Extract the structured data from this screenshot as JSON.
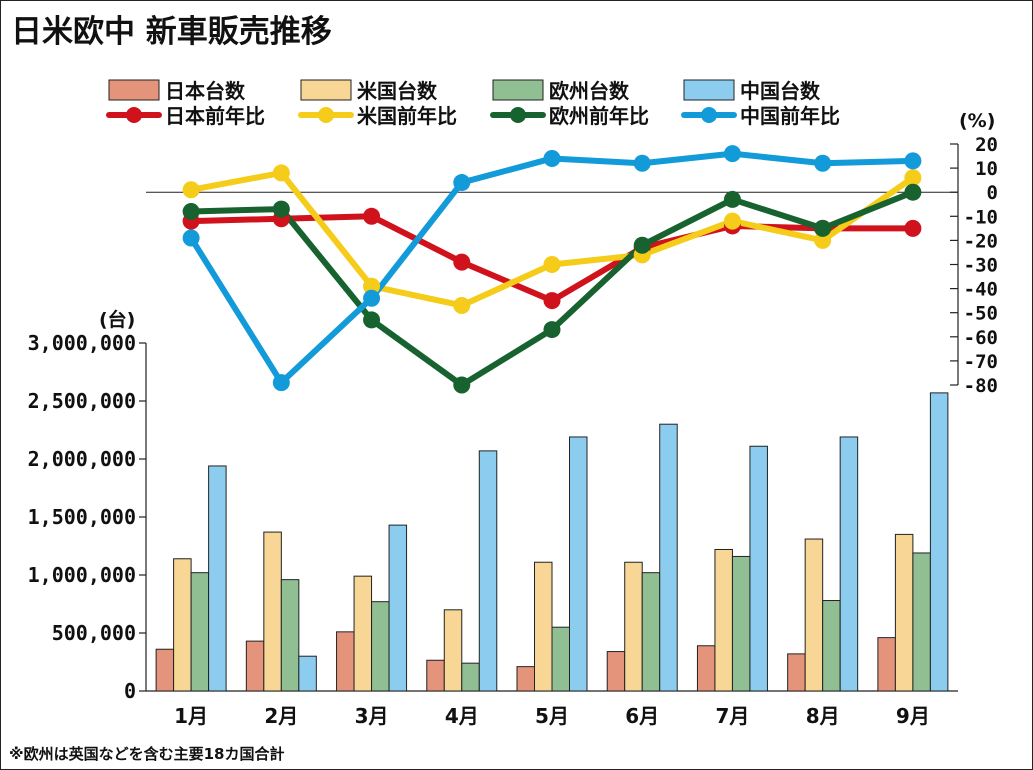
{
  "colors": {
    "jp_bar": "#e5947c",
    "us_bar": "#f8d695",
    "eu_bar": "#8fbf92",
    "cn_bar": "#8ccdef",
    "jp_line": "#d0121d",
    "us_line": "#f4cc19",
    "eu_line": "#17622e",
    "cn_line": "#139bd9"
  },
  "chart_data": {
    "type": "bar+line",
    "title": "日米欧中 新車販売推移",
    "categories": [
      "1月",
      "2月",
      "3月",
      "4月",
      "5月",
      "6月",
      "7月",
      "8月",
      "9月"
    ],
    "left_axis": {
      "unit": "(台)",
      "ylim": [
        0,
        3000000
      ],
      "ticks": [
        0,
        500000,
        1000000,
        1500000,
        2000000,
        2500000,
        3000000
      ],
      "tick_labels": [
        "0",
        "500,000",
        "1,000,000",
        "1,500,000",
        "2,000,000",
        "2,500,000",
        "3,000,000"
      ]
    },
    "right_axis": {
      "unit": "(%)",
      "ylim": [
        -80,
        20
      ],
      "ticks": [
        20,
        10,
        0,
        -10,
        -20,
        -30,
        -40,
        -50,
        -60,
        -70,
        -80
      ],
      "tick_labels": [
        "20",
        "10",
        "0",
        "-10",
        "-20",
        "-30",
        "-40",
        "-50",
        "-60",
        "-70",
        "-80"
      ]
    },
    "bar_series": [
      {
        "name": "日本台数",
        "color_key": "jp_bar",
        "values": [
          360000,
          430000,
          510000,
          265000,
          210000,
          340000,
          390000,
          320000,
          460000
        ]
      },
      {
        "name": "米国台数",
        "color_key": "us_bar",
        "values": [
          1140000,
          1370000,
          990000,
          700000,
          1110000,
          1110000,
          1220000,
          1310000,
          1350000
        ]
      },
      {
        "name": "欧州台数",
        "color_key": "eu_bar",
        "values": [
          1020000,
          960000,
          770000,
          240000,
          550000,
          1020000,
          1160000,
          780000,
          1190000
        ]
      },
      {
        "name": "中国台数",
        "color_key": "cn_bar",
        "values": [
          1940000,
          300000,
          1430000,
          2070000,
          2190000,
          2300000,
          2110000,
          2190000,
          2570000
        ]
      }
    ],
    "line_series": [
      {
        "name": "日本前年比",
        "color_key": "jp_line",
        "values": [
          -12,
          -11,
          -10,
          -29,
          -45,
          -23,
          -14,
          -15,
          -15
        ]
      },
      {
        "name": "米国前年比",
        "color_key": "us_line",
        "values": [
          1,
          8,
          -39,
          -47,
          -30,
          -26,
          -12,
          -20,
          6
        ]
      },
      {
        "name": "欧州前年比",
        "color_key": "eu_line",
        "values": [
          -8,
          -7,
          -53,
          -80,
          -57,
          -22,
          -3,
          -15,
          0
        ]
      },
      {
        "name": "中国前年比",
        "color_key": "cn_line",
        "values": [
          -19,
          -79,
          -44,
          4,
          14,
          12,
          16,
          12,
          13
        ]
      }
    ],
    "legend_position": "top",
    "note": "※欧州は英国などを含む主要18カ国合計"
  }
}
